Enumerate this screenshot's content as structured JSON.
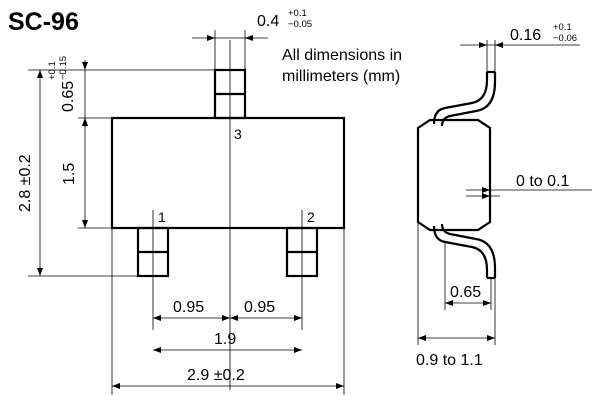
{
  "title": "SC-96",
  "note_line1": "All dimensions in",
  "note_line2": "millimeters (mm)",
  "pins": {
    "p1": "1",
    "p2": "2",
    "p3": "3"
  },
  "dims": {
    "lead_width_main": "0.4",
    "lead_width_tol_plus": "+0.1",
    "lead_width_tol_minus": "−0.05",
    "lead_thick_main": "0.16",
    "lead_thick_tol_plus": "+0.1",
    "lead_thick_tol_minus": "−0.06",
    "lead_len_main": "0.65",
    "lead_len_tol_plus": "+0.1",
    "lead_len_tol_minus": "−0.15",
    "overall_height": "2.8 ±0.2",
    "body_height": "1.5",
    "standoff": "0 to 0.1",
    "pitch_left": "0.95",
    "pitch_right": "0.95",
    "pitch_total": "1.9",
    "overall_width": "2.9 ±0.2",
    "foot_length": "0.65",
    "body_thickness": "0.9 to 1.1"
  }
}
